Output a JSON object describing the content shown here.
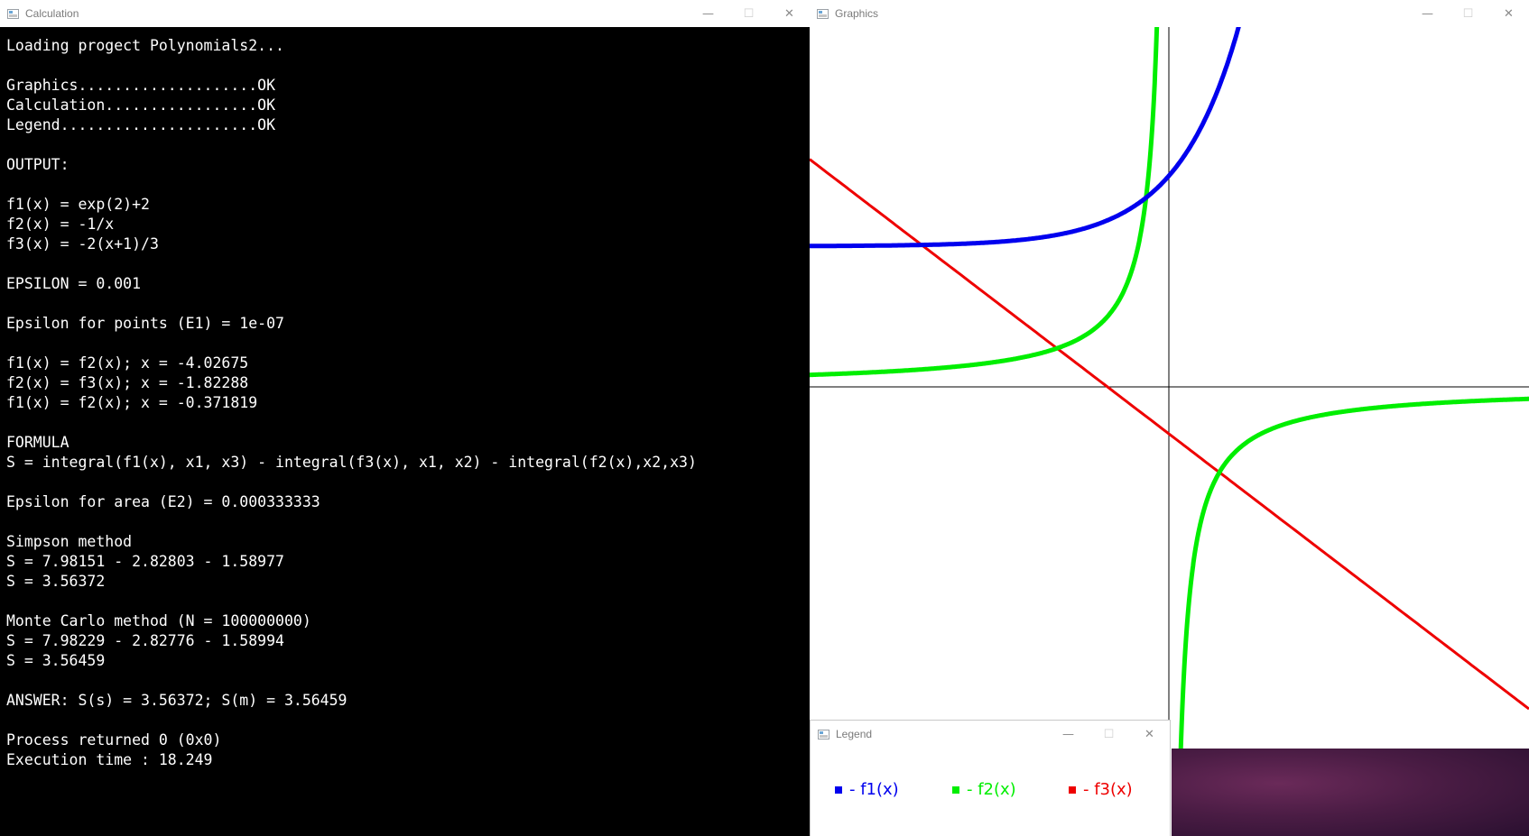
{
  "calc_window": {
    "title": "Calculation",
    "minimize": "—",
    "maximize": "☐",
    "close": "✕",
    "console_lines": [
      "Loading progect Polynomials2...",
      "",
      "Graphics....................OK",
      "Calculation.................OK",
      "Legend......................OK",
      "",
      "OUTPUT:",
      "",
      "f1(x) = exp(2)+2",
      "f2(x) = -1/x",
      "f3(x) = -2(x+1)/3",
      "",
      "EPSILON = 0.001",
      "",
      "Epsilon for points (E1) = 1e-07",
      "",
      "f1(x) = f2(x); x = -4.02675",
      "f2(x) = f3(x); x = -1.82288",
      "f1(x) = f2(x); x = -0.371819",
      "",
      "FORMULA",
      "S = integral(f1(x), x1, x3) - integral(f3(x), x1, x2) - integral(f2(x),x2,x3)",
      "",
      "Epsilon for area (E2) = 0.000333333",
      "",
      "Simpson method",
      "S = 7.98151 - 2.82803 - 1.58977",
      "S = 3.56372",
      "",
      "Monte Carlo method (N = 100000000)",
      "S = 7.98229 - 2.82776 - 1.58994",
      "S = 3.56459",
      "",
      "ANSWER: S(s) = 3.56372; S(m) = 3.56459",
      "",
      "Process returned 0 (0x0)",
      "Execution time : 18.249"
    ]
  },
  "graphics_window": {
    "title": "Graphics",
    "minimize": "—",
    "maximize": "☐",
    "close": "✕"
  },
  "legend_window": {
    "title": "Legend",
    "minimize": "—",
    "maximize": "☐",
    "close": "✕",
    "items": [
      {
        "label": "- f1(x)",
        "color": "#0000ee"
      },
      {
        "label": "- f2(x)",
        "color": "#00ee00"
      },
      {
        "label": "- f3(x)",
        "color": "#ee0000"
      }
    ]
  },
  "colors": {
    "f1": "#0000ee",
    "f2": "#00ee00",
    "f3": "#ee0000",
    "axes": "#000000",
    "console_bg": "#000000",
    "console_fg": "#ffffff"
  }
}
